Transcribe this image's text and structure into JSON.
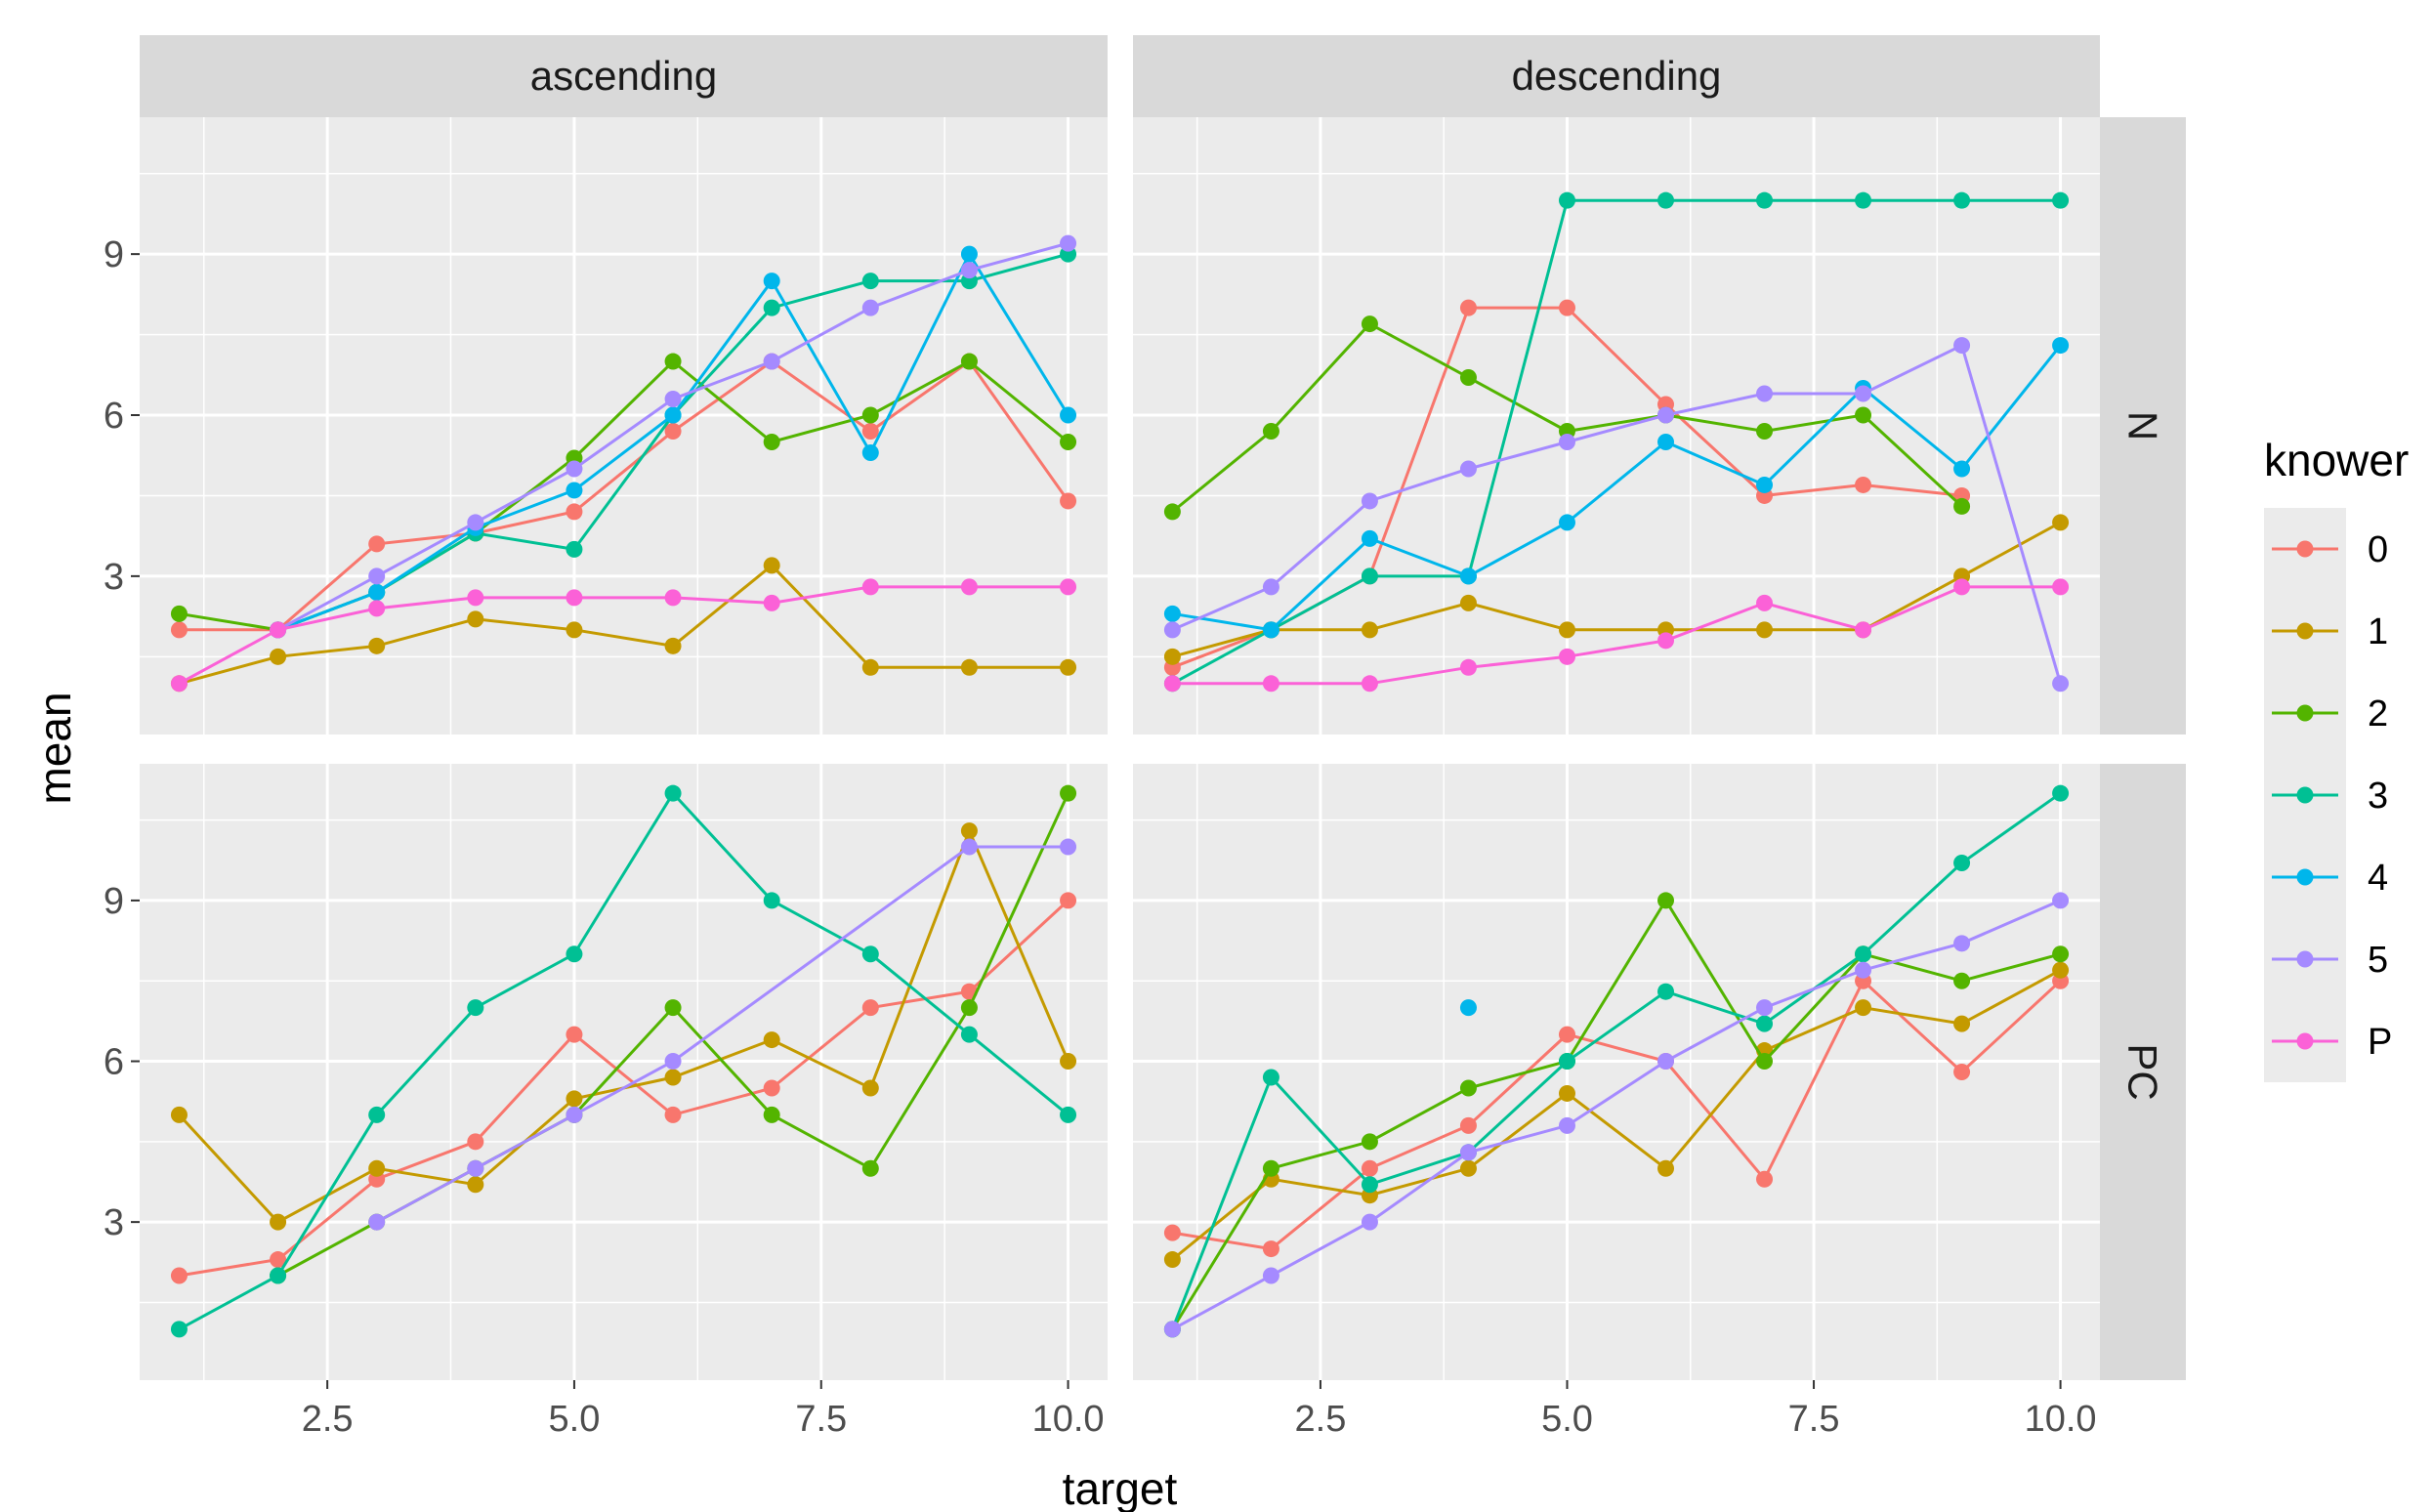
{
  "chart_data": {
    "type": "line",
    "xlabel": "target",
    "ylabel": "mean",
    "x_ticks": [
      "2.5",
      "5.0",
      "7.5",
      "10.0"
    ],
    "y_ticks": [
      "3",
      "6",
      "9"
    ],
    "xlim": [
      0.6,
      10.4
    ],
    "ylim": [
      0.05,
      11.55
    ],
    "grid": true,
    "legend_position": "right",
    "legend_title": "knower",
    "col_facets": [
      "ascending",
      "descending"
    ],
    "row_facets": [
      "N",
      "PC"
    ],
    "series": [
      {
        "name": "0",
        "color": "#F8766D"
      },
      {
        "name": "1",
        "color": "#C49A00"
      },
      {
        "name": "2",
        "color": "#53B400"
      },
      {
        "name": "3",
        "color": "#00C094"
      },
      {
        "name": "4",
        "color": "#00B6EB"
      },
      {
        "name": "5",
        "color": "#A58AFF"
      },
      {
        "name": "P",
        "color": "#FB61D7"
      }
    ],
    "panels": [
      {
        "col": "ascending",
        "row": "N",
        "series": {
          "0": [
            [
              1,
              2
            ],
            [
              2,
              2
            ],
            [
              3,
              3.6
            ],
            [
              4,
              3.8
            ],
            [
              5,
              4.2
            ],
            [
              6,
              5.7
            ],
            [
              7,
              7
            ],
            [
              8,
              5.7
            ],
            [
              9,
              7
            ],
            [
              10,
              4.4
            ]
          ],
          "1": [
            [
              1,
              1
            ],
            [
              2,
              1.5
            ],
            [
              3,
              1.7
            ],
            [
              4,
              2.2
            ],
            [
              5,
              2
            ],
            [
              6,
              1.7
            ],
            [
              7,
              3.2
            ],
            [
              8,
              1.3
            ],
            [
              9,
              1.3
            ],
            [
              10,
              1.3
            ]
          ],
          "2": [
            [
              1,
              2.3
            ],
            [
              2,
              2
            ],
            [
              3,
              2.7
            ],
            [
              4,
              3.8
            ],
            [
              5,
              5.2
            ],
            [
              6,
              7
            ],
            [
              7,
              5.5
            ],
            [
              8,
              6
            ],
            [
              9,
              7
            ],
            [
              10,
              5.5
            ]
          ],
          "3": [
            [
              2,
              2
            ],
            [
              3,
              2.7
            ],
            [
              4,
              3.8
            ],
            [
              5,
              3.5
            ],
            [
              6,
              6
            ],
            [
              7,
              8
            ],
            [
              8,
              8.5
            ],
            [
              9,
              8.5
            ],
            [
              10,
              9
            ]
          ],
          "4": [
            [
              2,
              2
            ],
            [
              3,
              2.7
            ],
            [
              4,
              3.9
            ],
            [
              5,
              4.6
            ],
            [
              6,
              6
            ],
            [
              7,
              8.5
            ],
            [
              8,
              5.3
            ],
            [
              9,
              9
            ],
            [
              10,
              6
            ]
          ],
          "5": [
            [
              2,
              2
            ],
            [
              3,
              3
            ],
            [
              4,
              4
            ],
            [
              5,
              5
            ],
            [
              6,
              6.3
            ],
            [
              7,
              7
            ],
            [
              8,
              8
            ],
            [
              9,
              8.7
            ],
            [
              10,
              9.2
            ]
          ],
          "P": [
            [
              1,
              1
            ],
            [
              2,
              2
            ],
            [
              3,
              2.4
            ],
            [
              4,
              2.6
            ],
            [
              5,
              2.6
            ],
            [
              6,
              2.6
            ],
            [
              7,
              2.5
            ],
            [
              8,
              2.8
            ],
            [
              9,
              2.8
            ],
            [
              10,
              2.8
            ]
          ]
        }
      },
      {
        "col": "descending",
        "row": "N",
        "series": {
          "0": [
            [
              1,
              1.3
            ],
            [
              2,
              2
            ],
            [
              3,
              3
            ],
            [
              4,
              8
            ],
            [
              5,
              8
            ],
            [
              6,
              6.2
            ],
            [
              7,
              4.5
            ],
            [
              8,
              4.7
            ],
            [
              9,
              4.5
            ]
          ],
          "1": [
            [
              1,
              1.5
            ],
            [
              2,
              2
            ],
            [
              3,
              2
            ],
            [
              4,
              2.5
            ],
            [
              5,
              2
            ],
            [
              6,
              2
            ],
            [
              7,
              2
            ],
            [
              8,
              2
            ],
            [
              9,
              3
            ],
            [
              10,
              4
            ]
          ],
          "2": [
            [
              1,
              4.2
            ],
            [
              2,
              5.7
            ],
            [
              3,
              7.7
            ],
            [
              4,
              6.7
            ],
            [
              5,
              5.7
            ],
            [
              6,
              6
            ],
            [
              7,
              5.7
            ],
            [
              8,
              6
            ],
            [
              9,
              4.3
            ]
          ],
          "3": [
            [
              1,
              1
            ],
            [
              2,
              2
            ],
            [
              3,
              3
            ],
            [
              4,
              3
            ],
            [
              5,
              10
            ],
            [
              6,
              10
            ],
            [
              7,
              10
            ],
            [
              8,
              10
            ],
            [
              9,
              10
            ],
            [
              10,
              10
            ]
          ],
          "4": [
            [
              1,
              2.3
            ],
            [
              2,
              2
            ],
            [
              3,
              3.7
            ],
            [
              4,
              3
            ],
            [
              5,
              4
            ],
            [
              6,
              5.5
            ],
            [
              7,
              4.7
            ],
            [
              8,
              6.5
            ],
            [
              9,
              5
            ],
            [
              10,
              7.3
            ]
          ],
          "5": [
            [
              1,
              2
            ],
            [
              2,
              2.8
            ],
            [
              3,
              4.4
            ],
            [
              4,
              5
            ],
            [
              5,
              5.5
            ],
            [
              6,
              6
            ],
            [
              7,
              6.4
            ],
            [
              8,
              6.4
            ],
            [
              9,
              7.3
            ],
            [
              10,
              1
            ]
          ],
          "P": [
            [
              1,
              1
            ],
            [
              2,
              1
            ],
            [
              3,
              1
            ],
            [
              4,
              1.3
            ],
            [
              5,
              1.5
            ],
            [
              6,
              1.8
            ],
            [
              7,
              2.5
            ],
            [
              8,
              2
            ],
            [
              9,
              2.8
            ],
            [
              10,
              2.8
            ]
          ]
        }
      },
      {
        "col": "ascending",
        "row": "PC",
        "series": {
          "0": [
            [
              1,
              2
            ],
            [
              2,
              2.3
            ],
            [
              3,
              3.8
            ],
            [
              4,
              4.5
            ],
            [
              5,
              6.5
            ],
            [
              6,
              5
            ],
            [
              7,
              5.5
            ],
            [
              8,
              7
            ],
            [
              9,
              7.3
            ],
            [
              10,
              9
            ]
          ],
          "1": [
            [
              1,
              5
            ],
            [
              2,
              3
            ],
            [
              3,
              4
            ],
            [
              4,
              3.7
            ],
            [
              5,
              5.3
            ],
            [
              6,
              5.7
            ],
            [
              7,
              6.4
            ],
            [
              8,
              5.5
            ],
            [
              9,
              10.3
            ],
            [
              10,
              6
            ]
          ],
          "2": [
            [
              2,
              2
            ],
            [
              3,
              3
            ],
            [
              4,
              4
            ],
            [
              5,
              5
            ],
            [
              6,
              7
            ],
            [
              7,
              5
            ],
            [
              8,
              4
            ],
            [
              9,
              7
            ],
            [
              10,
              11
            ]
          ],
          "3": [
            [
              1,
              1
            ],
            [
              2,
              2
            ],
            [
              3,
              5
            ],
            [
              4,
              7
            ],
            [
              5,
              8
            ],
            [
              6,
              11
            ],
            [
              7,
              9
            ],
            [
              8,
              8
            ],
            [
              9,
              6.5
            ],
            [
              10,
              5
            ]
          ],
          "5": [
            [
              3,
              3
            ],
            [
              4,
              4
            ],
            [
              5,
              5
            ],
            [
              6,
              6
            ],
            [
              9,
              10
            ],
            [
              10,
              10
            ]
          ]
        }
      },
      {
        "col": "descending",
        "row": "PC",
        "series": {
          "0": [
            [
              1,
              2.8
            ],
            [
              2,
              2.5
            ],
            [
              3,
              4
            ],
            [
              4,
              4.8
            ],
            [
              5,
              6.5
            ],
            [
              6,
              6
            ],
            [
              7,
              3.8
            ],
            [
              8,
              7.5
            ],
            [
              9,
              5.8
            ],
            [
              10,
              7.5
            ]
          ],
          "1": [
            [
              1,
              2.3
            ],
            [
              2,
              3.8
            ],
            [
              3,
              3.5
            ],
            [
              4,
              4
            ],
            [
              5,
              5.4
            ],
            [
              6,
              4
            ],
            [
              7,
              6.2
            ],
            [
              8,
              7
            ],
            [
              9,
              6.7
            ],
            [
              10,
              7.7
            ]
          ],
          "2": [
            [
              1,
              1
            ],
            [
              2,
              4
            ],
            [
              3,
              4.5
            ],
            [
              4,
              5.5
            ],
            [
              5,
              6
            ],
            [
              6,
              9
            ],
            [
              7,
              6
            ],
            [
              8,
              8
            ],
            [
              9,
              7.5
            ],
            [
              10,
              8
            ]
          ],
          "3": [
            [
              1,
              1
            ],
            [
              2,
              5.7
            ],
            [
              3,
              3.7
            ],
            [
              4,
              4.3
            ],
            [
              5,
              6
            ],
            [
              6,
              7.3
            ],
            [
              7,
              6.7
            ],
            [
              8,
              8
            ],
            [
              9,
              9.7
            ],
            [
              10,
              11
            ]
          ],
          "4": [
            [
              4,
              7
            ]
          ],
          "5": [
            [
              1,
              1
            ],
            [
              2,
              2
            ],
            [
              3,
              3
            ],
            [
              4,
              4.3
            ],
            [
              5,
              4.8
            ],
            [
              6,
              6
            ],
            [
              7,
              7
            ],
            [
              8,
              7.7
            ],
            [
              9,
              8.2
            ],
            [
              10,
              9
            ]
          ]
        }
      }
    ]
  }
}
